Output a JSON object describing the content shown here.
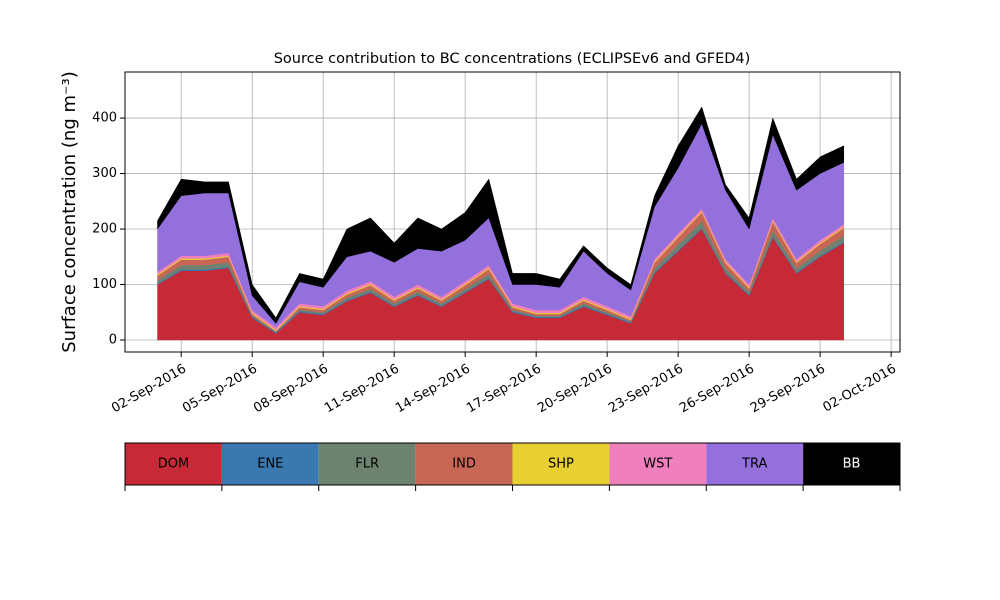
{
  "chart_data": {
    "type": "stacked_area",
    "title": "Source contribution to BC concentrations (ECLIPSEv6 and GFED4)",
    "y_label": "Surface concentration (ng m⁻³)",
    "x": [
      "2016-09-01",
      "2016-09-02",
      "2016-09-03",
      "2016-09-04",
      "2016-09-05",
      "2016-09-06",
      "2016-09-07",
      "2016-09-08",
      "2016-09-09",
      "2016-09-10",
      "2016-09-11",
      "2016-09-12",
      "2016-09-13",
      "2016-09-14",
      "2016-09-15",
      "2016-09-16",
      "2016-09-17",
      "2016-09-18",
      "2016-09-19",
      "2016-09-20",
      "2016-09-21",
      "2016-09-22",
      "2016-09-23",
      "2016-09-24",
      "2016-09-25",
      "2016-09-26",
      "2016-09-27",
      "2016-09-28",
      "2016-09-29",
      "2016-09-30"
    ],
    "series": [
      {
        "name": "DOM",
        "color": "#c52a36",
        "values": [
          100,
          125,
          125,
          130,
          40,
          12,
          50,
          45,
          70,
          85,
          60,
          80,
          60,
          85,
          110,
          50,
          40,
          40,
          60,
          45,
          30,
          120,
          160,
          200,
          120,
          80,
          185,
          120,
          150,
          175
        ]
      },
      {
        "name": "ENE",
        "color": "#3a78b0",
        "values": [
          2,
          2,
          2,
          2,
          2,
          2,
          2,
          2,
          2,
          2,
          2,
          2,
          2,
          2,
          2,
          2,
          2,
          2,
          2,
          2,
          2,
          2,
          2,
          2,
          2,
          2,
          2,
          2,
          2,
          2
        ]
      },
      {
        "name": "FLR",
        "color": "#6e8270",
        "values": [
          6,
          8,
          8,
          8,
          2,
          1,
          3,
          3,
          4,
          5,
          4,
          5,
          4,
          5,
          7,
          3,
          2,
          2,
          4,
          3,
          2,
          7,
          10,
          12,
          7,
          5,
          11,
          7,
          9,
          11
        ]
      },
      {
        "name": "IND",
        "color": "#c86656",
        "values": [
          8,
          10,
          10,
          10,
          3,
          1,
          4,
          4,
          6,
          7,
          5,
          6,
          5,
          7,
          9,
          4,
          3,
          3,
          5,
          4,
          2,
          10,
          13,
          16,
          10,
          6,
          15,
          10,
          12,
          14
        ]
      },
      {
        "name": "SHP",
        "color": "#e8cf32",
        "values": [
          2,
          2,
          2,
          2,
          2,
          2,
          2,
          2,
          2,
          2,
          2,
          2,
          2,
          2,
          2,
          2,
          2,
          2,
          2,
          2,
          2,
          2,
          2,
          2,
          2,
          2,
          2,
          2,
          2,
          2
        ]
      },
      {
        "name": "WST",
        "color": "#f07fbd",
        "values": [
          5,
          5,
          5,
          5,
          5,
          5,
          5,
          5,
          5,
          5,
          5,
          5,
          5,
          5,
          5,
          5,
          5,
          5,
          5,
          5,
          5,
          5,
          5,
          5,
          5,
          5,
          5,
          5,
          5,
          5
        ]
      },
      {
        "name": "TRA",
        "color": "#9370db",
        "values": [
          77,
          108,
          113,
          108,
          26,
          7,
          39,
          34,
          61,
          54,
          62,
          65,
          82,
          74,
          85,
          34,
          46,
          41,
          82,
          59,
          47,
          94,
          118,
          153,
          124,
          100,
          150,
          124,
          120,
          111
        ]
      },
      {
        "name": "BB",
        "color": "#000000",
        "values": [
          15,
          30,
          20,
          20,
          20,
          10,
          15,
          15,
          50,
          60,
          35,
          55,
          40,
          50,
          70,
          20,
          20,
          15,
          10,
          10,
          10,
          20,
          40,
          30,
          10,
          20,
          30,
          20,
          30,
          30
        ]
      }
    ],
    "xlim": [
      "2016-08-30T15:00",
      "2016-10-02T09:00"
    ],
    "xticks": [
      {
        "value": "2016-09-02",
        "label": "02-Sep-2016"
      },
      {
        "value": "2016-09-05",
        "label": "05-Sep-2016"
      },
      {
        "value": "2016-09-08",
        "label": "08-Sep-2016"
      },
      {
        "value": "2016-09-11",
        "label": "11-Sep-2016"
      },
      {
        "value": "2016-09-14",
        "label": "14-Sep-2016"
      },
      {
        "value": "2016-09-17",
        "label": "17-Sep-2016"
      },
      {
        "value": "2016-09-20",
        "label": "20-Sep-2016"
      },
      {
        "value": "2016-09-23",
        "label": "23-Sep-2016"
      },
      {
        "value": "2016-09-26",
        "label": "26-Sep-2016"
      },
      {
        "value": "2016-09-29",
        "label": "29-Sep-2016"
      },
      {
        "value": "2016-10-02",
        "label": "02-Oct-2016"
      }
    ],
    "ylim": [
      -21.6,
      483
    ],
    "yticks": [
      0,
      100,
      200,
      300,
      400
    ],
    "grid": true
  }
}
